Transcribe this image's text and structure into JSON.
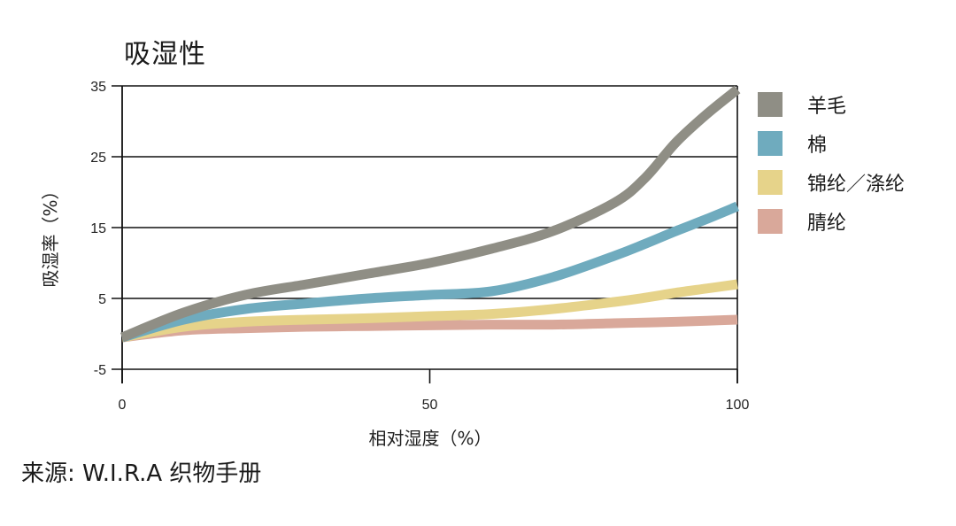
{
  "title": "吸湿性",
  "source": "来源: W.I.R.A 织物手册",
  "legend": [
    {
      "label": "羊毛",
      "color": "#8f8e85"
    },
    {
      "label": "棉",
      "color": "#6fabbe"
    },
    {
      "label": "锦纶／涤纶",
      "color": "#e6d38a"
    },
    {
      "label": "腈纶",
      "color": "#d9a89a"
    }
  ],
  "chart_data": {
    "type": "line",
    "title": "吸湿性",
    "xlabel": "相对湿度（%）",
    "ylabel": "吸湿率（%）",
    "xlim": [
      0,
      100
    ],
    "ylim": [
      -5,
      35
    ],
    "xticks": [
      "0",
      "50",
      "100"
    ],
    "yticks": [
      "35",
      "25",
      "15",
      "5",
      "-5"
    ],
    "grid": "horizontal",
    "legend_position": "right",
    "x": [
      0,
      10,
      20,
      30,
      40,
      50,
      60,
      70,
      80,
      85,
      90,
      95,
      100
    ],
    "series": [
      {
        "name": "羊毛",
        "color": "#8f8e85",
        "values": [
          -0.5,
          3,
          5.5,
          7,
          8.5,
          10,
          12,
          14.5,
          18.5,
          22,
          27,
          31,
          34.5
        ]
      },
      {
        "name": "棉",
        "color": "#6fabbe",
        "values": [
          -0.5,
          2,
          3.5,
          4.3,
          5,
          5.5,
          6,
          8,
          11,
          12.7,
          14.5,
          16.2,
          18
        ]
      },
      {
        "name": "锦纶／涤纶",
        "color": "#e6d38a",
        "values": [
          -0.5,
          1,
          1.7,
          2,
          2.2,
          2.5,
          2.8,
          3.5,
          4.5,
          5.1,
          5.8,
          6.4,
          7
        ]
      },
      {
        "name": "腈纶",
        "color": "#d9a89a",
        "values": [
          -0.5,
          0.5,
          0.8,
          1,
          1.1,
          1.2,
          1.3,
          1.3,
          1.5,
          1.6,
          1.7,
          1.85,
          2
        ]
      }
    ]
  }
}
